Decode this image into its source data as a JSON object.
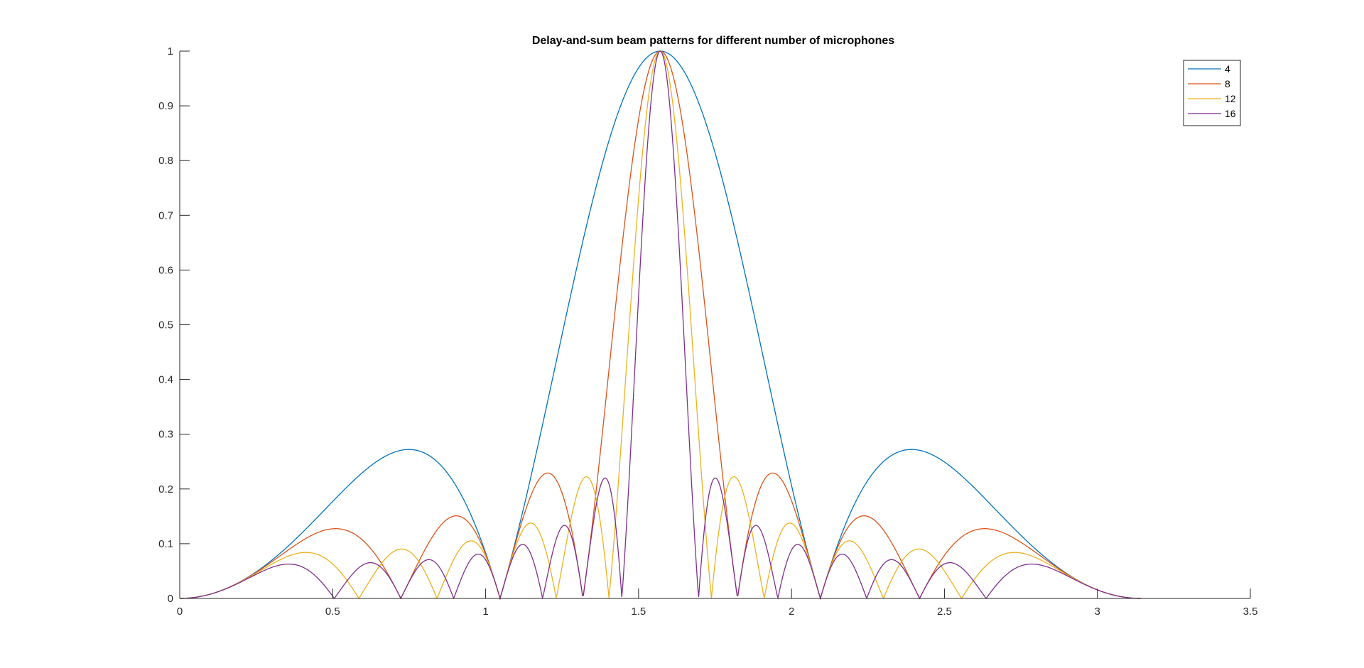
{
  "chart_data": {
    "type": "line",
    "title": "Delay-and-sum beam patterns for different number of microphones",
    "xlabel": "",
    "ylabel": "",
    "xlim": [
      0,
      3.5
    ],
    "ylim": [
      0,
      1
    ],
    "xticks": [
      0,
      0.5,
      1,
      1.5,
      2,
      2.5,
      3,
      3.5
    ],
    "yticks": [
      0,
      0.1,
      0.2,
      0.3,
      0.4,
      0.5,
      0.6,
      0.7,
      0.8,
      0.9,
      1
    ],
    "xtick_labels": [
      "0",
      "0.5",
      "1",
      "1.5",
      "2",
      "2.5",
      "3",
      "3.5"
    ],
    "ytick_labels": [
      "0",
      "0.1",
      "0.2",
      "0.3",
      "0.4",
      "0.5",
      "0.6",
      "0.7",
      "0.8",
      "0.9",
      "1"
    ],
    "x_range": [
      0,
      3.1416
    ],
    "sample_count": 1200,
    "grid": false,
    "legend_position": "top-right",
    "series": [
      {
        "name": "4",
        "mics": 4,
        "color": "#0072BD"
      },
      {
        "name": "8",
        "mics": 8,
        "color": "#D95319"
      },
      {
        "name": "12",
        "mics": 12,
        "color": "#EDB120"
      },
      {
        "name": "16",
        "mics": 16,
        "color": "#7E2F8E"
      }
    ]
  }
}
